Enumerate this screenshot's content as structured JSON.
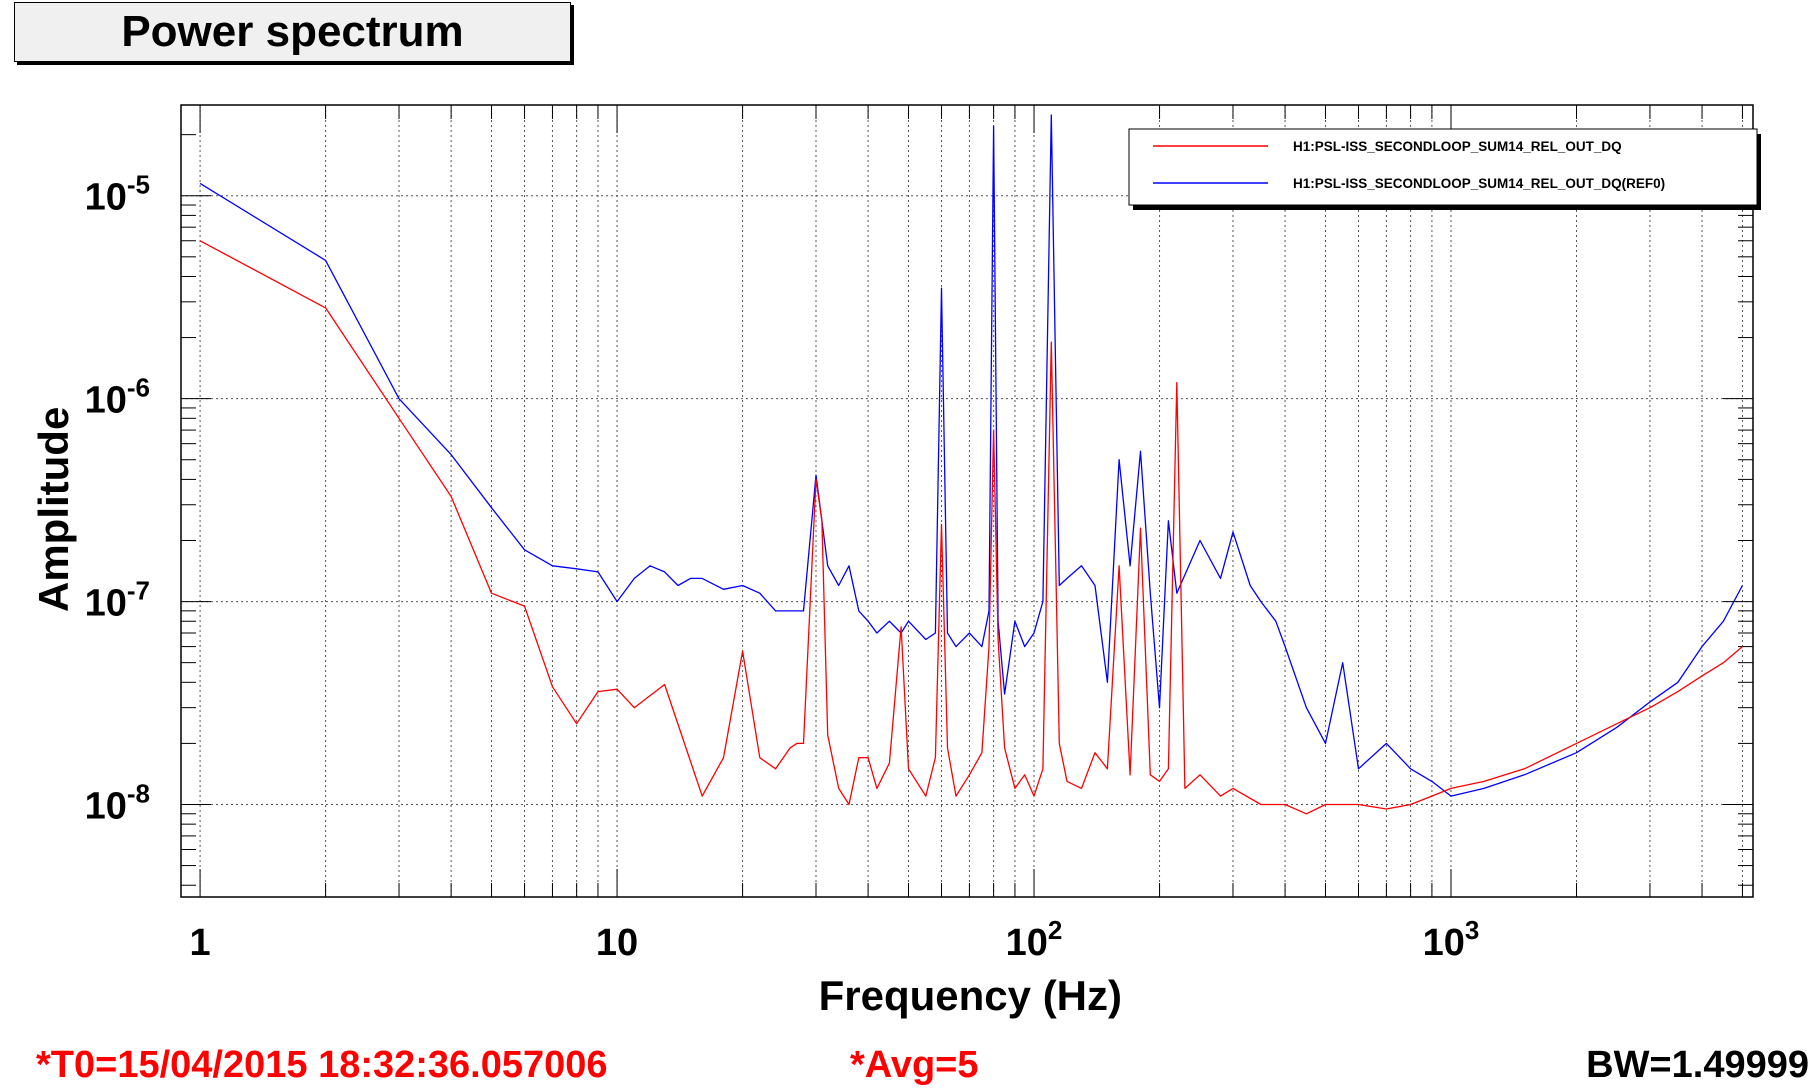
{
  "title": "Power spectrum",
  "chart_data": {
    "type": "line",
    "xscale": "log",
    "yscale": "log",
    "xlim": [
      0.9,
      5300
    ],
    "ylim": [
      3.5e-09,
      2.8e-05
    ],
    "xlabel": "Frequency (Hz)",
    "ylabel": "Amplitude",
    "grid": true,
    "legend_position": "top-right",
    "x_ticks": [
      {
        "value": 1,
        "base": "1",
        "exp": ""
      },
      {
        "value": 10,
        "base": "10",
        "exp": ""
      },
      {
        "value": 100,
        "base": "10",
        "exp": "2"
      },
      {
        "value": 1000,
        "base": "10",
        "exp": "3"
      }
    ],
    "y_ticks": [
      {
        "value": 1e-08,
        "base": "10",
        "exp": "-8"
      },
      {
        "value": 1e-07,
        "base": "10",
        "exp": "-7"
      },
      {
        "value": 1e-06,
        "base": "10",
        "exp": "-6"
      },
      {
        "value": 1e-05,
        "base": "10",
        "exp": "-5"
      }
    ],
    "series": [
      {
        "name": "H1:PSL-ISS_SECONDLOOP_SUM14_REL_OUT_DQ",
        "color": "#ff0000",
        "x": [
          1,
          2,
          3,
          4,
          5,
          6,
          7,
          8,
          9,
          10,
          11,
          13,
          16,
          18,
          20,
          22,
          24,
          26,
          27,
          28,
          30,
          31,
          32,
          34,
          36,
          38,
          40,
          42,
          45,
          48,
          50,
          55,
          58,
          60,
          62,
          65,
          70,
          75,
          78,
          80,
          82,
          85,
          90,
          95,
          100,
          105,
          110,
          115,
          120,
          130,
          140,
          150,
          160,
          170,
          180,
          190,
          200,
          210,
          220,
          230,
          250,
          280,
          300,
          350,
          400,
          450,
          500,
          600,
          700,
          800,
          900,
          1000,
          1200,
          1500,
          2000,
          2500,
          3000,
          3500,
          4000,
          4500,
          5000
        ],
        "y": [
          6e-06,
          2.8e-06,
          8e-07,
          3.3e-07,
          1.1e-07,
          9.5e-08,
          3.8e-08,
          2.5e-08,
          3.6e-08,
          3.7e-08,
          3e-08,
          3.9e-08,
          1.1e-08,
          1.7e-08,
          5.7e-08,
          1.7e-08,
          1.5e-08,
          1.9e-08,
          2e-08,
          2e-08,
          4e-07,
          2.5e-07,
          2.2e-08,
          1.2e-08,
          1e-08,
          1.7e-08,
          1.7e-08,
          1.2e-08,
          1.6e-08,
          7.5e-08,
          1.5e-08,
          1.1e-08,
          1.7e-08,
          2.4e-07,
          1.9e-08,
          1.1e-08,
          1.4e-08,
          1.8e-08,
          6e-08,
          7e-07,
          6.5e-08,
          1.9e-08,
          1.2e-08,
          1.4e-08,
          1.1e-08,
          1.5e-08,
          1.9e-06,
          2e-08,
          1.3e-08,
          1.2e-08,
          1.8e-08,
          1.5e-08,
          1.5e-07,
          1.4e-08,
          2.3e-07,
          1.4e-08,
          1.3e-08,
          1.5e-08,
          1.2e-06,
          1.2e-08,
          1.4e-08,
          1.1e-08,
          1.2e-08,
          1e-08,
          1e-08,
          9e-09,
          1e-08,
          1e-08,
          9.5e-09,
          1e-08,
          1.1e-08,
          1.2e-08,
          1.3e-08,
          1.5e-08,
          2e-08,
          2.5e-08,
          3e-08,
          3.6e-08,
          4.3e-08,
          5e-08,
          6e-08
        ]
      },
      {
        "name": "H1:PSL-ISS_SECONDLOOP_SUM14_REL_OUT_DQ(REF0)",
        "color": "#0000ff",
        "x": [
          1,
          2,
          3,
          4,
          5,
          6,
          7,
          8,
          9,
          10,
          11,
          12,
          13,
          14,
          15,
          16,
          18,
          20,
          22,
          24,
          26,
          28,
          30,
          32,
          34,
          36,
          38,
          40,
          42,
          45,
          48,
          50,
          55,
          58,
          60,
          62,
          65,
          70,
          75,
          78,
          80,
          82,
          85,
          90,
          95,
          100,
          105,
          110,
          115,
          120,
          130,
          140,
          150,
          160,
          170,
          180,
          190,
          200,
          210,
          220,
          250,
          280,
          300,
          330,
          350,
          380,
          400,
          450,
          500,
          550,
          600,
          700,
          800,
          900,
          1000,
          1200,
          1500,
          2000,
          2500,
          3000,
          3500,
          4000,
          4500,
          5000
        ],
        "y": [
          1.15e-05,
          4.8e-06,
          1e-06,
          5.3e-07,
          2.9e-07,
          1.8e-07,
          1.5e-07,
          1.45e-07,
          1.4e-07,
          1e-07,
          1.3e-07,
          1.5e-07,
          1.4e-07,
          1.2e-07,
          1.3e-07,
          1.3e-07,
          1.15e-07,
          1.2e-07,
          1.1e-07,
          9e-08,
          9e-08,
          9e-08,
          4.2e-07,
          1.5e-07,
          1.2e-07,
          1.5e-07,
          9e-08,
          8e-08,
          7e-08,
          8e-08,
          7e-08,
          8e-08,
          6.5e-08,
          7e-08,
          3.5e-06,
          7e-08,
          6e-08,
          7e-08,
          6e-08,
          9e-08,
          2.2e-05,
          8e-08,
          3.5e-08,
          8e-08,
          6e-08,
          7e-08,
          1e-07,
          2.5e-05,
          1.2e-07,
          1.3e-07,
          1.5e-07,
          1.2e-07,
          4e-08,
          5e-07,
          1.5e-07,
          5.5e-07,
          1.1e-07,
          3e-08,
          2.5e-07,
          1.1e-07,
          2e-07,
          1.3e-07,
          2.2e-07,
          1.2e-07,
          1e-07,
          8e-08,
          6e-08,
          3e-08,
          2e-08,
          5e-08,
          1.5e-08,
          2e-08,
          1.5e-08,
          1.3e-08,
          1.1e-08,
          1.2e-08,
          1.4e-08,
          1.8e-08,
          2.4e-08,
          3.2e-08,
          4e-08,
          6e-08,
          8e-08,
          1.2e-07
        ]
      }
    ]
  },
  "footer": {
    "t0": "*T0=15/04/2015 18:32:36.057006",
    "avg": "*Avg=5",
    "bw": "BW=1.49999"
  }
}
